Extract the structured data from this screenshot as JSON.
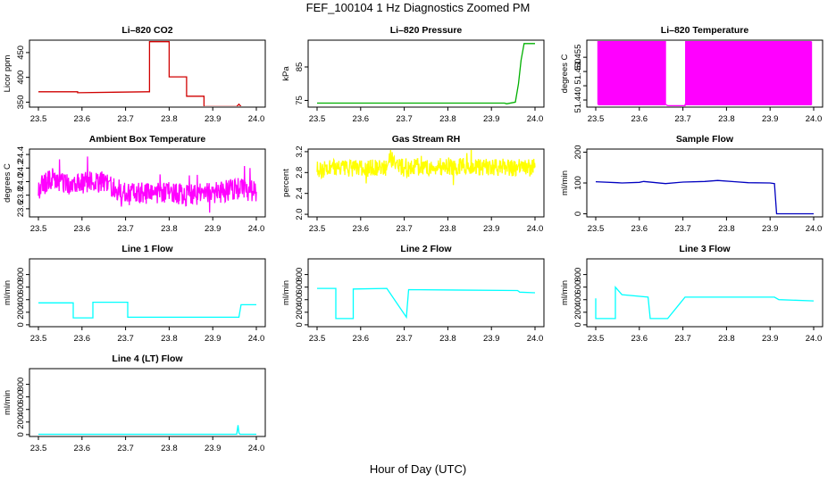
{
  "title": "FEF_100104  1 Hz Diagnostics Zoomed PM",
  "xlabel": "Hour of Day (UTC)",
  "chart_data": [
    {
      "type": "line",
      "title": "Li–820 CO2",
      "ylabel": "Licor ppm",
      "color": "#d00000",
      "xlim": [
        23.5,
        24.0
      ],
      "ylim": [
        340,
        475
      ],
      "yticks": [
        350,
        400,
        450
      ],
      "ytick_labels": [
        "350",
        "400",
        "450"
      ],
      "series": [
        {
          "name": "CO2",
          "x": [
            23.5,
            23.59,
            23.59,
            23.75,
            23.755,
            23.755,
            23.8,
            23.8,
            23.84,
            23.84,
            23.88,
            23.88,
            23.955,
            23.96,
            23.965,
            23.965,
            24.0
          ],
          "y": [
            371,
            371,
            369,
            371,
            371,
            472,
            472,
            401,
            401,
            362,
            362,
            341,
            341,
            346,
            341,
            340,
            340
          ]
        }
      ]
    },
    {
      "type": "line",
      "title": "Li–820 Pressure",
      "ylabel": "kPa",
      "color": "#00b000",
      "xlim": [
        23.5,
        24.0
      ],
      "ylim": [
        73,
        93
      ],
      "yticks": [
        75,
        85
      ],
      "ytick_labels": [
        "75",
        "85"
      ],
      "series": [
        {
          "name": "Pressure",
          "x": [
            23.5,
            23.93,
            23.935,
            23.955,
            23.962,
            23.968,
            23.975,
            24.0
          ],
          "y": [
            74.2,
            74.2,
            74.0,
            74.5,
            80,
            87,
            92,
            92
          ]
        }
      ]
    },
    {
      "type": "line",
      "title": "Li–820 Temperature",
      "ylabel": "degrees C",
      "color": "#ff00ff",
      "xlim": [
        23.5,
        24.0
      ],
      "ylim": [
        51.4375,
        51.461
      ],
      "yticks": [
        51.44,
        51.445,
        51.45,
        51.455
      ],
      "ytick_labels": [
        "51.440",
        "",
        "51.450",
        "51.455"
      ],
      "series": [
        {
          "name": "Temperature",
          "x": [
            23.505,
            23.505,
            23.66,
            23.66,
            23.665,
            23.705,
            23.705,
            23.995,
            23.995
          ],
          "y": [
            51.4385,
            51.4605,
            51.4605,
            51.4385,
            51.438,
            51.438,
            51.4385,
            51.4385,
            51.4605
          ]
        }
      ]
    },
    {
      "type": "line",
      "title": "Ambient Box Temperature",
      "ylabel": "degrees C",
      "color": "#ff00ff",
      "xlim": [
        23.5,
        24.0
      ],
      "ylim": [
        23.48,
        24.48
      ],
      "yticks": [
        23.6,
        23.8,
        24.0,
        24.2,
        24.4
      ],
      "ytick_labels": [
        "23.6",
        "23.8",
        "24.0",
        "24.2",
        "24.4"
      ],
      "series": [
        {
          "name": "Box Temp",
          "x": [
            23.5,
            23.535,
            23.57,
            23.62,
            23.66,
            23.665,
            23.705,
            23.72,
            23.76,
            23.8,
            23.84,
            23.88,
            23.92,
            23.96,
            24.0
          ],
          "y": [
            23.9,
            24.05,
            23.95,
            24.0,
            24.0,
            23.95,
            23.8,
            23.85,
            23.82,
            23.85,
            23.8,
            23.82,
            23.85,
            23.9,
            23.85
          ]
        }
      ]
    },
    {
      "type": "line",
      "title": "Gas Stream RH",
      "ylabel": "percent",
      "color": "#ffff00",
      "xlim": [
        23.5,
        24.0
      ],
      "ylim": [
        1.95,
        3.25
      ],
      "yticks": [
        2.0,
        2.4,
        2.8,
        3.2
      ],
      "ytick_labels": [
        "2.0",
        "2.4",
        "2.8",
        "3.2"
      ],
      "series": [
        {
          "name": "RH",
          "x": [
            23.5,
            23.55,
            23.6,
            23.66,
            23.665,
            23.705,
            23.72,
            23.8,
            23.9,
            24.0
          ],
          "y": [
            2.85,
            2.9,
            2.88,
            2.9,
            3.1,
            2.85,
            2.9,
            2.92,
            2.9,
            2.9
          ]
        }
      ]
    },
    {
      "type": "line",
      "title": "Sample Flow",
      "ylabel": "ml/min",
      "color": "#0000c0",
      "xlim": [
        23.5,
        24.0
      ],
      "ylim": [
        -10,
        210
      ],
      "yticks": [
        0,
        100,
        200
      ],
      "ytick_labels": [
        "0",
        "100",
        "200"
      ],
      "series": [
        {
          "name": "Sample Flow",
          "x": [
            23.5,
            23.55,
            23.56,
            23.6,
            23.61,
            23.66,
            23.7,
            23.75,
            23.78,
            23.82,
            23.85,
            23.9,
            23.91,
            23.915,
            24.0
          ],
          "y": [
            104,
            101,
            100,
            102,
            105,
            98,
            103,
            105,
            108,
            104,
            101,
            100,
            98,
            0,
            0
          ]
        }
      ]
    },
    {
      "type": "line",
      "title": "Line 1 Flow",
      "ylabel": "ml/min",
      "color": "#00ffff",
      "xlim": [
        23.5,
        24.0
      ],
      "ylim": [
        -30,
        1050
      ],
      "yticks": [
        0,
        200,
        400,
        600,
        800
      ],
      "ytick_labels": [
        "0",
        "200",
        "400",
        "600",
        "800"
      ],
      "series": [
        {
          "name": "Line 1",
          "x": [
            23.5,
            23.58,
            23.58,
            23.625,
            23.625,
            23.705,
            23.705,
            23.955,
            23.96,
            23.965,
            24.0
          ],
          "y": [
            350,
            350,
            110,
            110,
            360,
            360,
            120,
            120,
            120,
            320,
            320
          ]
        }
      ]
    },
    {
      "type": "line",
      "title": "Line 2 Flow",
      "ylabel": "ml/min",
      "color": "#00ffff",
      "xlim": [
        23.5,
        24.0
      ],
      "ylim": [
        -30,
        1050
      ],
      "yticks": [
        0,
        200,
        400,
        600,
        800
      ],
      "ytick_labels": [
        "0",
        "200",
        "400",
        "600",
        "800"
      ],
      "series": [
        {
          "name": "Line 2",
          "x": [
            23.5,
            23.543,
            23.543,
            23.583,
            23.583,
            23.66,
            23.705,
            23.71,
            23.96,
            23.965,
            24.0
          ],
          "y": [
            580,
            580,
            100,
            100,
            570,
            580,
            120,
            560,
            545,
            520,
            510
          ]
        }
      ]
    },
    {
      "type": "line",
      "title": "Line 3 Flow",
      "ylabel": "ml/min",
      "color": "#00ffff",
      "xlim": [
        23.5,
        24.0
      ],
      "ylim": [
        -30,
        1050
      ],
      "yticks": [
        0,
        200,
        400,
        600,
        800
      ],
      "ytick_labels": [
        "0",
        "200",
        "400",
        "600",
        "800"
      ],
      "series": [
        {
          "name": "Line 3",
          "x": [
            23.5,
            23.5,
            23.505,
            23.545,
            23.545,
            23.56,
            23.62,
            23.625,
            23.665,
            23.705,
            23.91,
            23.92,
            24.0
          ],
          "y": [
            420,
            100,
            100,
            100,
            600,
            480,
            440,
            100,
            100,
            440,
            440,
            400,
            380
          ]
        }
      ]
    },
    {
      "type": "line",
      "title": "Line 4 (LT) Flow",
      "ylabel": "ml/min",
      "color": "#00ffff",
      "xlim": [
        23.5,
        24.0
      ],
      "ylim": [
        -30,
        1050
      ],
      "yticks": [
        0,
        200,
        400,
        600,
        800
      ],
      "ytick_labels": [
        "0",
        "200",
        "400",
        "600",
        "800"
      ],
      "series": [
        {
          "name": "Line 4",
          "x": [
            23.5,
            23.955,
            23.958,
            23.96,
            23.962,
            24.0
          ],
          "y": [
            5,
            5,
            150,
            30,
            5,
            5
          ]
        }
      ]
    }
  ],
  "xticks": [
    23.5,
    23.6,
    23.7,
    23.8,
    23.9,
    24.0
  ],
  "xtick_labels": [
    "23.5",
    "23.6",
    "23.7",
    "23.8",
    "23.9",
    "24.0"
  ]
}
